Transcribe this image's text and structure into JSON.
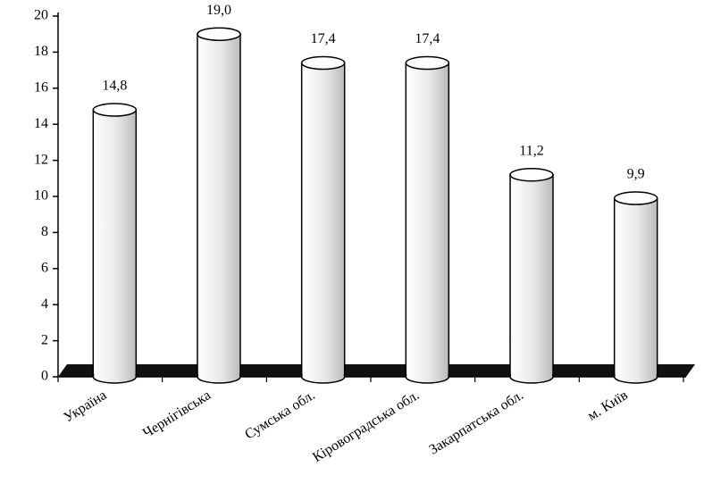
{
  "chart_data": {
    "type": "bar",
    "categories": [
      "Україна",
      "Чернігівська",
      "Сумська обл.",
      "Кіровоградська обл.",
      "Закарпатська обл.",
      "м. Київ"
    ],
    "values": [
      14.8,
      19.0,
      17.4,
      17.4,
      11.2,
      9.9
    ],
    "value_labels": [
      "14,8",
      "19,0",
      "17,4",
      "17,4",
      "11,2",
      "9,9"
    ],
    "color": "#ffffff",
    "ylim": [
      0,
      20
    ],
    "yticks": [
      0,
      2,
      4,
      6,
      8,
      10,
      12,
      14,
      16,
      18,
      20
    ]
  }
}
